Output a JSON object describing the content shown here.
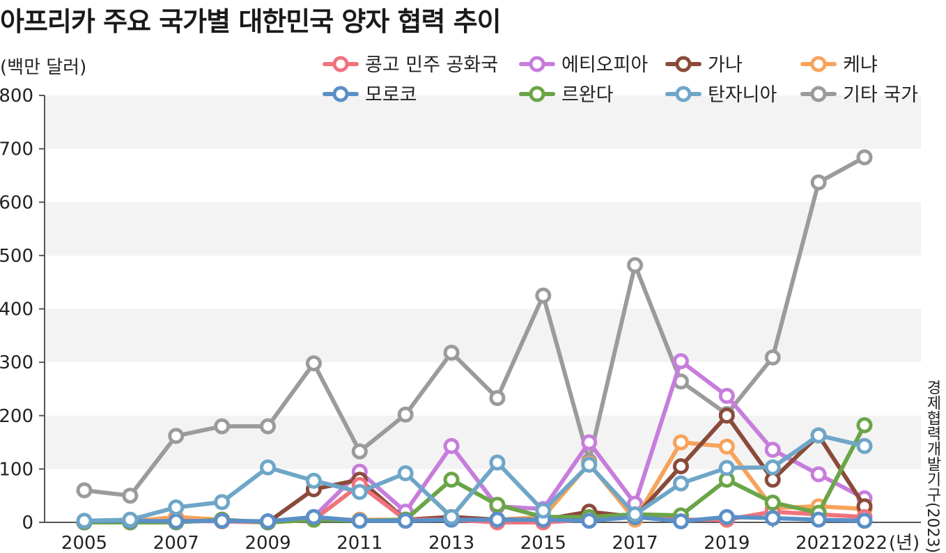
{
  "title": "아프리카 주요 국가별 대한민국 양자 협력 추이",
  "unit_label": "(백만 달러)",
  "source_label": "경제협력개발기구(2023)",
  "x_unit_label": "(년)",
  "chart_data": {
    "type": "line",
    "title": "아프리카 주요 국가별 대한민국 양자 협력 추이",
    "ylabel": "(백만 달러)",
    "xlabel": "(년)",
    "ylim": [
      0,
      800
    ],
    "yticks": [
      0,
      100,
      200,
      300,
      400,
      500,
      600,
      700,
      800
    ],
    "xlim": [
      2005,
      2022
    ],
    "xticks": [
      2005,
      2007,
      2009,
      2011,
      2013,
      2015,
      2017,
      2019,
      2021,
      2022
    ],
    "grid": "alternating horizontal bands",
    "legend_position": "top-right",
    "x": [
      2005,
      2006,
      2007,
      2008,
      2009,
      2010,
      2011,
      2012,
      2013,
      2014,
      2015,
      2016,
      2017,
      2018,
      2019,
      2020,
      2021,
      2022
    ],
    "series": [
      {
        "name": "기타 국가",
        "color": "#9b9b9b",
        "values": [
          60,
          50,
          162,
          180,
          180,
          298,
          133,
          202,
          318,
          233,
          425,
          115,
          482,
          264,
          203,
          309,
          637,
          684
        ]
      },
      {
        "name": "에티오피아",
        "color": "#c77ddc",
        "values": [
          0,
          0,
          5,
          3,
          0,
          10,
          95,
          20,
          143,
          30,
          25,
          150,
          35,
          302,
          237,
          136,
          90,
          45
        ]
      },
      {
        "name": "케냐",
        "color": "#f7a35c",
        "values": [
          0,
          2,
          10,
          5,
          0,
          5,
          5,
          5,
          10,
          5,
          10,
          110,
          5,
          150,
          142,
          27,
          30,
          25
        ]
      },
      {
        "name": "가나",
        "color": "#8a4b3a",
        "values": [
          0,
          0,
          2,
          3,
          0,
          62,
          80,
          5,
          10,
          5,
          5,
          20,
          10,
          105,
          200,
          80,
          163,
          30
        ]
      },
      {
        "name": "콩고 민주 공화국",
        "color": "#f0737c",
        "values": [
          0,
          0,
          3,
          2,
          0,
          5,
          70,
          5,
          5,
          0,
          0,
          5,
          10,
          5,
          5,
          20,
          15,
          10
        ]
      },
      {
        "name": "르완다",
        "color": "#6ba547",
        "values": [
          0,
          0,
          0,
          5,
          0,
          5,
          3,
          5,
          80,
          33,
          10,
          10,
          15,
          13,
          80,
          37,
          18,
          182
        ]
      },
      {
        "name": "모로코",
        "color": "#5b8fc7",
        "values": [
          2,
          3,
          2,
          3,
          2,
          10,
          3,
          3,
          5,
          5,
          5,
          3,
          10,
          2,
          10,
          8,
          5,
          3
        ]
      },
      {
        "name": "탄자니아",
        "color": "#6fa6c8",
        "values": [
          3,
          5,
          28,
          38,
          103,
          78,
          57,
          92,
          10,
          112,
          22,
          108,
          15,
          73,
          102,
          103,
          163,
          143
        ]
      }
    ]
  },
  "legend": [
    {
      "name": "콩고 민주 공화국",
      "color": "#f0737c"
    },
    {
      "name": "에티오피아",
      "color": "#c77ddc"
    },
    {
      "name": "가나",
      "color": "#8a4b3a"
    },
    {
      "name": "케냐",
      "color": "#f7a35c"
    },
    {
      "name": "모로코",
      "color": "#5b8fc7"
    },
    {
      "name": "르완다",
      "color": "#6ba547"
    },
    {
      "name": "탄자니아",
      "color": "#6fa6c8"
    },
    {
      "name": "기타 국가",
      "color": "#9b9b9b"
    }
  ]
}
